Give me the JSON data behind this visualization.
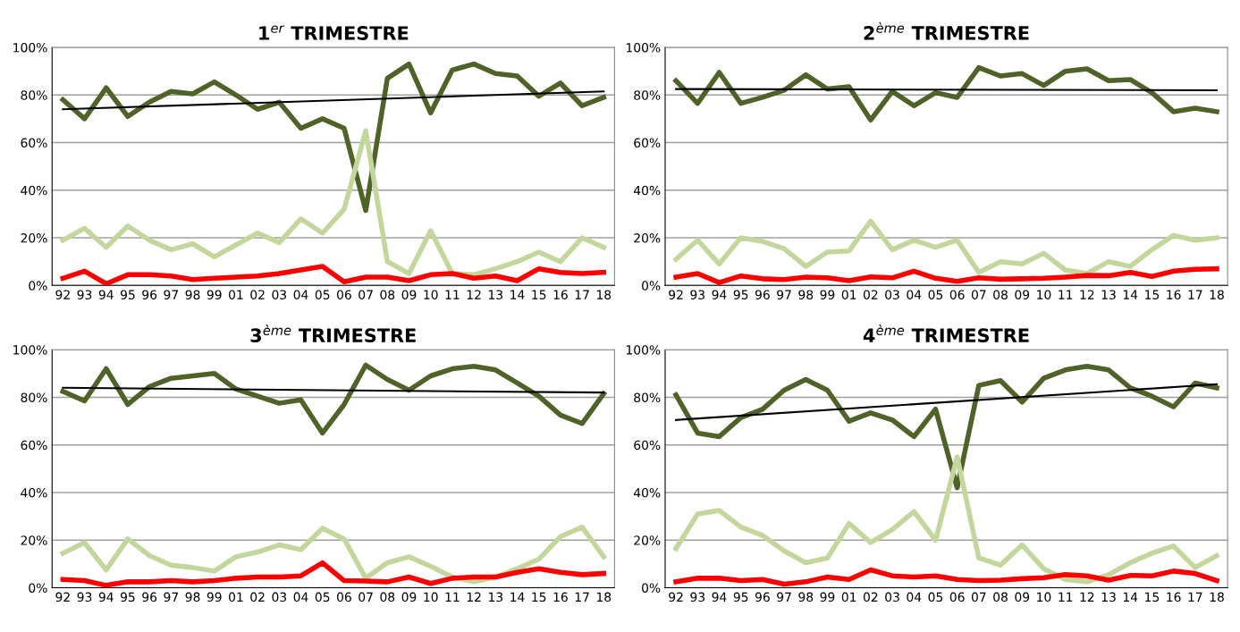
{
  "chart_data": [
    {
      "type": "line",
      "title": "1$^{er}$ TRIMESTRE",
      "categories": [
        "92",
        "93",
        "94",
        "95",
        "96",
        "97",
        "98",
        "99",
        "01",
        "02",
        "03",
        "04",
        "05",
        "06",
        "07",
        "08",
        "09",
        "10",
        "11",
        "12",
        "13",
        "14",
        "15",
        "16",
        "17",
        "18"
      ],
      "ylim": [
        0,
        100
      ],
      "yticks": [
        {
          "value": 0,
          "label": "0%"
        },
        {
          "value": 20,
          "label": "20%"
        },
        {
          "value": 40,
          "label": "40%"
        },
        {
          "value": 60,
          "label": "60%"
        },
        {
          "value": 80,
          "label": "80%"
        },
        {
          "value": 100,
          "label": "100%"
        }
      ],
      "grid": "y",
      "legend": false,
      "series": [
        {
          "color": "#4f6228",
          "values": [
            78,
            70,
            83,
            71,
            77,
            81.5,
            80.5,
            85.5,
            80,
            74,
            77,
            66,
            70,
            66,
            31.5,
            87,
            93,
            72.5,
            90.5,
            93,
            89,
            88,
            79.5,
            85,
            75.5,
            79
          ]
        },
        {
          "color": "#c3d69b",
          "values": [
            19,
            24,
            16,
            25,
            19,
            15,
            17.5,
            12,
            17,
            22,
            18,
            28,
            22,
            32,
            65,
            10,
            5,
            23,
            5,
            4.5,
            7,
            10,
            14,
            10,
            20,
            16
          ]
        },
        {
          "color": "#ff0000",
          "values": [
            3,
            6,
            0.7,
            4.5,
            4.5,
            4,
            2.5,
            3,
            3.5,
            4,
            5,
            6.5,
            8,
            1.5,
            3.5,
            3.5,
            2,
            4.5,
            5,
            3,
            4,
            2,
            7,
            5.5,
            5,
            5.5
          ]
        },
        {
          "type": "line",
          "color": "#000000",
          "x": [
            "92",
            "18"
          ],
          "values": [
            74,
            81.5
          ]
        }
      ]
    },
    {
      "type": "line",
      "title": "2$^{ème}$ TRIMESTRE",
      "categories": [
        "92",
        "93",
        "94",
        "95",
        "96",
        "97",
        "98",
        "99",
        "01",
        "02",
        "03",
        "04",
        "05",
        "06",
        "07",
        "08",
        "09",
        "10",
        "11",
        "12",
        "13",
        "14",
        "15",
        "16",
        "17",
        "18"
      ],
      "ylim": [
        0,
        100
      ],
      "yticks": [
        {
          "value": 0,
          "label": "0%"
        },
        {
          "value": 20,
          "label": "20%"
        },
        {
          "value": 40,
          "label": "40%"
        },
        {
          "value": 60,
          "label": "60%"
        },
        {
          "value": 80,
          "label": "80%"
        },
        {
          "value": 100,
          "label": "100%"
        }
      ],
      "grid": "y",
      "legend": false,
      "series": [
        {
          "color": "#4f6228",
          "values": [
            86,
            76.5,
            89.5,
            76.5,
            79,
            82,
            88.5,
            82.5,
            83.5,
            69.5,
            81.5,
            75.5,
            81,
            79,
            91.5,
            88,
            89,
            84,
            90,
            91,
            86,
            86.5,
            81,
            73,
            74.5,
            73
          ]
        },
        {
          "color": "#c3d69b",
          "values": [
            11,
            19,
            9,
            20,
            18.5,
            15.5,
            8,
            14,
            14.5,
            27,
            15,
            19,
            16,
            19,
            5.5,
            10,
            9,
            13.5,
            6.5,
            5,
            10,
            8,
            15,
            21,
            19,
            20
          ]
        },
        {
          "color": "#ff0000",
          "values": [
            3.5,
            5,
            1.2,
            4,
            2.8,
            2.5,
            3.5,
            3.2,
            2,
            3.6,
            3.2,
            6,
            3,
            1.7,
            3.2,
            2.6,
            2.8,
            3,
            3.5,
            4.2,
            4.1,
            5.5,
            3.8,
            6,
            6.8,
            7
          ]
        },
        {
          "type": "line",
          "color": "#000000",
          "x": [
            "92",
            "18"
          ],
          "values": [
            82.5,
            82
          ]
        }
      ]
    },
    {
      "type": "line",
      "title": "3$^{ème}$ TRIMESTRE",
      "categories": [
        "92",
        "93",
        "94",
        "95",
        "96",
        "97",
        "98",
        "99",
        "01",
        "02",
        "03",
        "04",
        "05",
        "06",
        "07",
        "08",
        "09",
        "10",
        "11",
        "12",
        "13",
        "14",
        "15",
        "16",
        "17",
        "18"
      ],
      "ylim": [
        0,
        100
      ],
      "yticks": [
        {
          "value": 0,
          "label": "0%"
        },
        {
          "value": 20,
          "label": "20%"
        },
        {
          "value": 40,
          "label": "40%"
        },
        {
          "value": 60,
          "label": "60%"
        },
        {
          "value": 80,
          "label": "80%"
        },
        {
          "value": 100,
          "label": "100%"
        }
      ],
      "grid": "y",
      "legend": false,
      "series": [
        {
          "color": "#4f6228",
          "values": [
            82.5,
            78.5,
            92,
            77,
            84.5,
            88,
            89,
            90,
            83.5,
            80.5,
            77.5,
            79,
            65,
            77,
            93.5,
            87.5,
            83,
            89,
            92,
            93,
            91.5,
            86,
            80.5,
            72.5,
            69,
            81.5
          ]
        },
        {
          "color": "#c3d69b",
          "values": [
            14.5,
            19,
            7.5,
            20.5,
            13.5,
            9.5,
            8.5,
            7,
            13,
            15,
            18,
            16,
            25,
            20.5,
            4,
            10.5,
            13,
            9,
            4.5,
            2.5,
            4.5,
            8,
            12,
            21.5,
            25.5,
            13
          ]
        },
        {
          "color": "#ff0000",
          "values": [
            3.5,
            3,
            1,
            2.5,
            2.5,
            3,
            2.5,
            3,
            4,
            4.5,
            4.5,
            5,
            10.5,
            3,
            2.8,
            2.5,
            4.5,
            1.8,
            4,
            4.5,
            4.5,
            6.5,
            8,
            6.5,
            5.5,
            6
          ]
        },
        {
          "type": "line",
          "color": "#000000",
          "x": [
            "92",
            "18"
          ],
          "values": [
            84,
            82
          ]
        }
      ]
    },
    {
      "type": "line",
      "title": "4$^{ème}$ TRIMESTRE",
      "categories": [
        "92",
        "93",
        "94",
        "95",
        "96",
        "97",
        "98",
        "99",
        "01",
        "02",
        "03",
        "04",
        "05",
        "06",
        "07",
        "08",
        "09",
        "10",
        "11",
        "12",
        "13",
        "14",
        "15",
        "16",
        "17",
        "18"
      ],
      "ylim": [
        0,
        100
      ],
      "yticks": [
        {
          "value": 0,
          "label": "0%"
        },
        {
          "value": 20,
          "label": "20%"
        },
        {
          "value": 40,
          "label": "40%"
        },
        {
          "value": 60,
          "label": "60%"
        },
        {
          "value": 80,
          "label": "80%"
        },
        {
          "value": 100,
          "label": "100%"
        }
      ],
      "grid": "y",
      "legend": false,
      "series": [
        {
          "color": "#4f6228",
          "values": [
            81,
            65,
            63.5,
            71.5,
            75,
            83,
            87.5,
            83,
            70,
            73.5,
            70.5,
            63.5,
            75,
            42,
            85,
            87,
            78,
            88,
            91.5,
            93,
            91.5,
            84,
            80.5,
            76,
            86,
            84
          ]
        },
        {
          "color": "#c3d69b",
          "values": [
            16.5,
            31,
            32.5,
            25.5,
            22,
            15.5,
            10.5,
            12.5,
            27,
            19,
            24.5,
            32,
            20,
            55,
            12.5,
            9.5,
            18,
            8,
            3.5,
            2.5,
            5.5,
            10.5,
            14.5,
            17.5,
            8.5,
            13.5
          ]
        },
        {
          "color": "#ff0000",
          "values": [
            2.5,
            4,
            4,
            3,
            3.5,
            1.5,
            2.5,
            4.5,
            3.5,
            7.5,
            5,
            4.5,
            5,
            3.5,
            3,
            3.2,
            3.8,
            4.2,
            5.5,
            5,
            3.2,
            5.2,
            5,
            7,
            6,
            3
          ]
        },
        {
          "type": "line",
          "color": "#000000",
          "x": [
            "92",
            "18"
          ],
          "values": [
            70.5,
            85.5
          ]
        }
      ]
    }
  ]
}
